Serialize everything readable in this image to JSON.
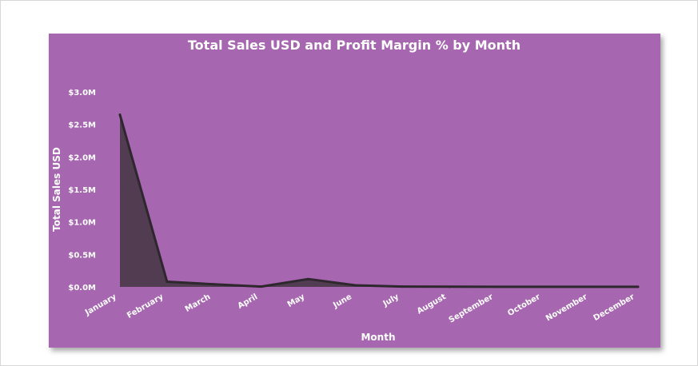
{
  "colors": {
    "background": "#a666b0",
    "area_fill": "#523c52",
    "line": "#2e272e",
    "text": "#ffffff"
  },
  "chart_data": {
    "type": "area",
    "title": "Total Sales USD and Profit Margin % by Month",
    "xlabel": "Month",
    "ylabel": "Total Sales USD",
    "categories": [
      "January",
      "February",
      "March",
      "April",
      "May",
      "June",
      "July",
      "August",
      "September",
      "October",
      "November",
      "December"
    ],
    "series": [
      {
        "values": [
          2650000,
          80000,
          40000,
          5000,
          120000,
          25000,
          5000,
          2000,
          1000,
          1000,
          1000,
          1000
        ]
      }
    ],
    "y_ticks": [
      "$0.0M",
      "$0.5M",
      "$1.0M",
      "$1.5M",
      "$2.0M",
      "$2.5M",
      "$3.0M"
    ],
    "y_tick_values": [
      0,
      500000,
      1000000,
      1500000,
      2000000,
      2500000,
      3000000
    ],
    "ylim": [
      0,
      3000000
    ],
    "grid": false,
    "legend": "none"
  }
}
